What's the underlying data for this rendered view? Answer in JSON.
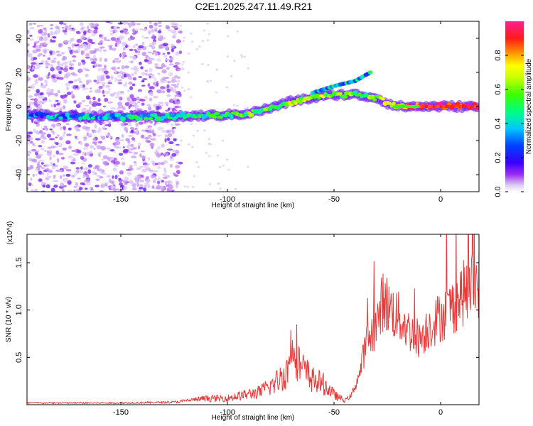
{
  "title": "C2E1.2025.247.11.49.R21",
  "chart_data": [
    {
      "type": "heatmap",
      "name": "spectrogram",
      "xlabel": "Height of straight line (km)",
      "ylabel": "Frequency (Hz)",
      "xlim": [
        -194,
        18
      ],
      "ylim": [
        -50,
        50
      ],
      "xticks": [
        -150,
        -100,
        -50,
        0
      ],
      "yticks": [
        -40,
        -20,
        0,
        20,
        40
      ],
      "xtick_labels": [
        "-150",
        "-100",
        "-50",
        "0"
      ],
      "ytick_labels": [
        "-40",
        "-20",
        "0",
        "20",
        "40"
      ],
      "ridge": {
        "x": [
          -194,
          -170,
          -150,
          -125,
          -100,
          -90,
          -80,
          -70,
          -60,
          -50,
          -40,
          -30,
          -25,
          -20,
          -10,
          0,
          10,
          18
        ],
        "y": [
          -5,
          -6,
          -6,
          -6,
          -5,
          -4,
          -1,
          3,
          5,
          7,
          7,
          5,
          2,
          0,
          0,
          0,
          0,
          0
        ]
      },
      "ridge_amplitude": [
        0.3,
        0.35,
        0.4,
        0.45,
        0.5,
        0.55,
        0.55,
        0.6,
        0.6,
        0.6,
        0.55,
        0.6,
        0.65,
        0.7,
        0.85,
        0.95,
        0.95,
        0.95
      ],
      "branch": {
        "x": [
          -60,
          -50,
          -40,
          -33
        ],
        "y": [
          8,
          12,
          15,
          20
        ]
      },
      "noise_region_x": [
        -194,
        -122
      ],
      "colorbar": {
        "label": "Normalized spectral amplitude",
        "range": [
          0.0,
          1.0
        ],
        "ticks": [
          0.0,
          0.2,
          0.4,
          0.6,
          0.8
        ],
        "tick_labels": [
          "0.0",
          "0.2",
          "0.4",
          "0.6",
          "0.8"
        ]
      }
    },
    {
      "type": "line",
      "name": "snr",
      "xlabel": "Height of straight line (km)",
      "ylabel": "SNR (10 * v/v)",
      "y_multiplier": "(x10^4)",
      "xlim": [
        -194,
        18
      ],
      "ylim": [
        0,
        1.8
      ],
      "xticks": [
        -150,
        -100,
        -50,
        0
      ],
      "yticks": [
        0.5,
        1.0,
        1.5
      ],
      "xtick_labels": [
        "-150",
        "-100",
        "-50",
        "0"
      ],
      "ytick_labels": [
        "0.5",
        "1.0",
        "1.5"
      ],
      "color": "#e83a3a",
      "envelope": {
        "x": [
          -194,
          -150,
          -125,
          -112,
          -100,
          -85,
          -78,
          -72,
          -69,
          -66,
          -60,
          -55,
          -50,
          -45,
          -42,
          -38,
          -35,
          -30,
          -27,
          -24,
          -20,
          -15,
          -10,
          -5,
          0,
          5,
          10,
          18
        ],
        "y": [
          0.02,
          0.02,
          0.03,
          0.07,
          0.08,
          0.15,
          0.25,
          0.4,
          0.85,
          0.45,
          0.3,
          0.25,
          0.12,
          0.05,
          0.1,
          0.35,
          0.7,
          0.9,
          1.2,
          1.1,
          1.0,
          0.85,
          0.75,
          0.9,
          1.0,
          1.1,
          1.25,
          1.4
        ]
      }
    }
  ]
}
